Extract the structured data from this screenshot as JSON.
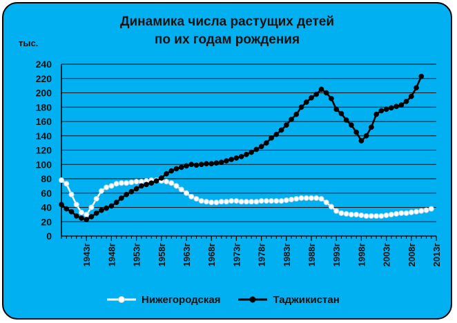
{
  "colors": {
    "background": "#00b0f0",
    "border": "#000000",
    "series_nizhny": "#ffffff",
    "series_tajik": "#000000",
    "text": "#111111"
  },
  "chart_data": {
    "type": "line",
    "title_lines": [
      "Динамика числа растущих детей",
      "по их годам рождения"
    ],
    "unit_label": "тыс.",
    "ylim": [
      0,
      240
    ],
    "yticks": [
      0,
      20,
      40,
      60,
      80,
      100,
      120,
      140,
      160,
      180,
      200,
      220,
      240
    ],
    "xlim": [
      1938,
      2013
    ],
    "xticks": [
      1943,
      1948,
      1953,
      1958,
      1963,
      1968,
      1973,
      1978,
      1983,
      1988,
      1993,
      1998,
      2003,
      2008,
      2013
    ],
    "xtick_labels": [
      "1943г",
      "1948г",
      "1953г",
      "1958г",
      "1963г",
      "1968г",
      "1973г",
      "1978г",
      "1983г",
      "1988г",
      "1993г",
      "1998г",
      "2003г",
      "2008г",
      "2013г"
    ],
    "grid": true,
    "legend_position": "bottom",
    "series": [
      {
        "name": "Нижегородская",
        "color": "#ffffff",
        "marker": "hollow",
        "x": [
          1938,
          1939,
          1940,
          1941,
          1942,
          1943,
          1944,
          1945,
          1946,
          1947,
          1948,
          1949,
          1950,
          1951,
          1952,
          1953,
          1954,
          1955,
          1956,
          1957,
          1958,
          1959,
          1960,
          1961,
          1962,
          1963,
          1964,
          1965,
          1966,
          1967,
          1968,
          1969,
          1970,
          1971,
          1972,
          1973,
          1974,
          1975,
          1976,
          1977,
          1978,
          1979,
          1980,
          1981,
          1982,
          1983,
          1984,
          1985,
          1986,
          1987,
          1988,
          1989,
          1990,
          1991,
          1992,
          1993,
          1994,
          1995,
          1996,
          1997,
          1998,
          1999,
          2000,
          2001,
          2002,
          2003,
          2004,
          2005,
          2006,
          2007,
          2008,
          2009,
          2010,
          2011,
          2012
        ],
        "y": [
          78,
          73,
          58,
          44,
          33,
          30,
          40,
          52,
          63,
          68,
          70,
          73,
          74,
          74,
          75,
          76,
          76,
          77,
          78,
          78,
          77,
          76,
          74,
          70,
          65,
          60,
          55,
          52,
          49,
          48,
          47,
          47,
          48,
          48,
          49,
          49,
          48,
          48,
          48,
          48,
          49,
          49,
          49,
          49,
          49,
          50,
          51,
          52,
          53,
          53,
          53,
          53,
          52,
          47,
          41,
          35,
          32,
          31,
          30,
          30,
          29,
          28,
          28,
          28,
          28,
          29,
          30,
          31,
          32,
          32,
          33,
          34,
          35,
          36,
          38
        ]
      },
      {
        "name": "Таджикистан",
        "color": "#000000",
        "marker": "filled",
        "x": [
          1938,
          1939,
          1940,
          1941,
          1942,
          1943,
          1944,
          1945,
          1946,
          1947,
          1948,
          1949,
          1950,
          1951,
          1952,
          1953,
          1954,
          1955,
          1956,
          1957,
          1958,
          1959,
          1960,
          1961,
          1962,
          1963,
          1964,
          1965,
          1966,
          1967,
          1968,
          1969,
          1970,
          1971,
          1972,
          1973,
          1974,
          1975,
          1976,
          1977,
          1978,
          1979,
          1980,
          1981,
          1982,
          1983,
          1984,
          1985,
          1986,
          1987,
          1988,
          1989,
          1990,
          1991,
          1992,
          1993,
          1994,
          1995,
          1996,
          1997,
          1998,
          1999,
          2000,
          2001,
          2002,
          2003,
          2004,
          2005,
          2006,
          2007,
          2008,
          2009,
          2010
        ],
        "y": [
          44,
          38,
          34,
          28,
          25,
          23,
          27,
          32,
          36,
          39,
          42,
          47,
          53,
          58,
          62,
          66,
          70,
          72,
          74,
          77,
          81,
          87,
          91,
          94,
          96,
          98,
          100,
          99,
          100,
          101,
          101,
          102,
          103,
          105,
          107,
          109,
          111,
          114,
          117,
          121,
          125,
          130,
          137,
          142,
          148,
          155,
          163,
          170,
          180,
          187,
          193,
          198,
          205,
          200,
          192,
          177,
          171,
          162,
          155,
          145,
          133,
          140,
          152,
          170,
          175,
          177,
          179,
          181,
          183,
          188,
          195,
          207,
          223
        ]
      }
    ]
  }
}
